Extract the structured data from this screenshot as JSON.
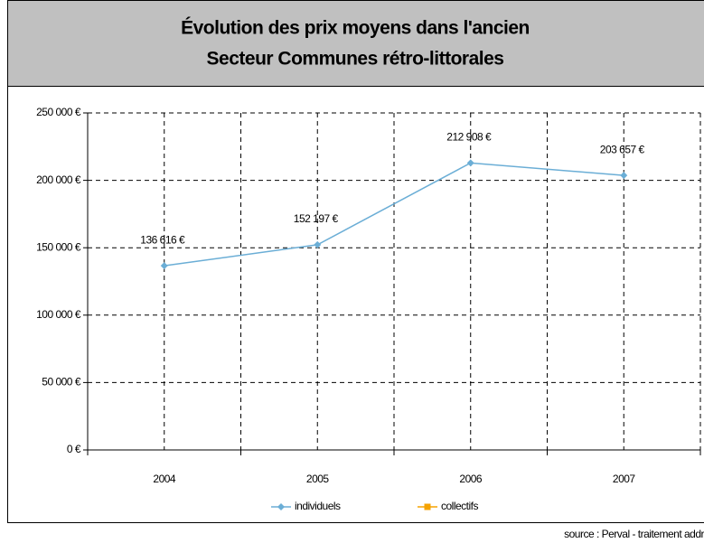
{
  "chart_data": {
    "type": "line",
    "title": [
      "Évolution des prix moyens dans l'ancien",
      "Secteur Communes rétro-littorales"
    ],
    "categories": [
      "2004",
      "2005",
      "2006",
      "2007"
    ],
    "series": [
      {
        "name": "individuels",
        "color": "#6baed6",
        "values": [
          136616,
          152197,
          212908,
          203657
        ],
        "value_labels": [
          "136 616 €",
          "152 197 €",
          "212 908 €",
          "203 657 €"
        ]
      },
      {
        "name": "collectifs",
        "color": "#f5a300",
        "values": [
          null,
          null,
          null,
          null
        ]
      }
    ],
    "ylim": [
      0,
      250000
    ],
    "yticks": [
      {
        "value": 0,
        "label": "0 €"
      },
      {
        "value": 50000,
        "label": "50 000 €"
      },
      {
        "value": 100000,
        "label": "100 000 €"
      },
      {
        "value": 150000,
        "label": "150 000 €"
      },
      {
        "value": 200000,
        "label": "200 000 €"
      },
      {
        "value": 250000,
        "label": "250 000 €"
      }
    ],
    "grid": true,
    "legend": "bottom",
    "source": "source : Perval - traitement addr"
  }
}
